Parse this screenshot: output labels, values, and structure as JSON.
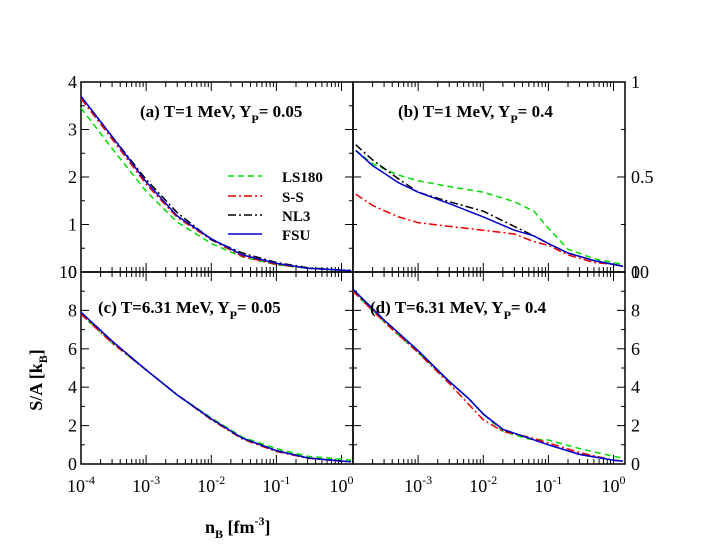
{
  "chart_data": {
    "type": "line",
    "xlabel": "n",
    "xlabel_sub": "B",
    "xlabel_units": " [fm",
    "xlabel_exp": "-3",
    "xlabel_close": "]",
    "ylabel": "S/A [k",
    "ylabel_sub": "B",
    "ylabel_close": "]",
    "x_scale": "log",
    "legend": {
      "placement": "panel-a-right",
      "entries": [
        {
          "name": "LS180",
          "color": "#00dd00",
          "dash": "dashed"
        },
        {
          "name": "S-S",
          "color": "#ee0000",
          "dash": "dash-dot"
        },
        {
          "name": "NL3",
          "color": "#000000",
          "dash": "dash-dot"
        },
        {
          "name": "FSU",
          "color": "#0000cc",
          "dash": "solid"
        }
      ]
    },
    "panels": [
      {
        "id": "a",
        "title_main": "(a) T=1 MeV, Y",
        "title_sub": "P",
        "title_tail": "= 0.05",
        "xlim": [
          0.0001,
          1.5
        ],
        "ylim": [
          0,
          4
        ],
        "yticks": [
          0,
          1,
          2,
          3,
          4
        ],
        "yticklabels": [
          "0",
          "1",
          "2",
          "3",
          "4"
        ],
        "xticklabels": [],
        "series": {
          "LS180": {
            "x": [
              0.0001,
              0.0003,
              0.001,
              0.003,
              0.01,
              0.03,
              0.1,
              0.3,
              1.0,
              1.4
            ],
            "y": [
              3.45,
              2.6,
              1.7,
              1.05,
              0.6,
              0.32,
              0.15,
              0.08,
              0.04,
              0.03
            ]
          },
          "S-S": {
            "x": [
              0.0001,
              0.0003,
              0.001,
              0.003,
              0.01,
              0.03,
              0.1,
              0.3,
              1.0,
              1.4
            ],
            "y": [
              3.65,
              2.8,
              1.85,
              1.15,
              0.68,
              0.33,
              0.16,
              0.08,
              0.04,
              0.03
            ]
          },
          "NL3": {
            "x": [
              0.0001,
              0.0003,
              0.001,
              0.003,
              0.01,
              0.03,
              0.1,
              0.3,
              1.0,
              1.4
            ],
            "y": [
              3.7,
              2.85,
              1.95,
              1.25,
              0.68,
              0.4,
              0.2,
              0.09,
              0.04,
              0.03
            ]
          },
          "FSU": {
            "x": [
              0.0001,
              0.0003,
              0.001,
              0.003,
              0.01,
              0.03,
              0.1,
              0.3,
              1.0,
              1.4
            ],
            "y": [
              3.7,
              2.85,
              1.9,
              1.18,
              0.7,
              0.36,
              0.18,
              0.08,
              0.04,
              0.03
            ]
          }
        }
      },
      {
        "id": "b",
        "title_main": "(b) T=1 MeV, Y",
        "title_sub": "P",
        "title_tail": "= 0.4",
        "xlim": [
          0.0001,
          1.5
        ],
        "ylim": [
          0,
          1
        ],
        "yticks": [
          0,
          0.5,
          1
        ],
        "yticklabels": [
          "0",
          "0.5",
          "1"
        ],
        "xticklabels": [],
        "series": {
          "LS180": {
            "x": [
              0.00011,
              0.0002,
              0.0005,
              0.001,
              0.003,
              0.01,
              0.03,
              0.06,
              0.1,
              0.2,
              0.5,
              1.0,
              1.4
            ],
            "y": [
              0.64,
              0.57,
              0.51,
              0.48,
              0.45,
              0.42,
              0.37,
              0.32,
              0.23,
              0.12,
              0.07,
              0.05,
              0.04
            ]
          },
          "S-S": {
            "x": [
              0.00011,
              0.0002,
              0.0005,
              0.001,
              0.003,
              0.01,
              0.03,
              0.06,
              0.1,
              0.2,
              0.5,
              1.0,
              1.4
            ],
            "y": [
              0.41,
              0.35,
              0.29,
              0.26,
              0.24,
              0.22,
              0.2,
              0.16,
              0.14,
              0.09,
              0.05,
              0.04,
              0.03
            ]
          },
          "NL3": {
            "x": [
              0.00011,
              0.0002,
              0.0005,
              0.001,
              0.003,
              0.01,
              0.03,
              0.06,
              0.1,
              0.2,
              0.5,
              1.0,
              1.4
            ],
            "y": [
              0.67,
              0.59,
              0.49,
              0.42,
              0.37,
              0.32,
              0.24,
              0.19,
              0.15,
              0.1,
              0.06,
              0.04,
              0.03
            ]
          },
          "FSU": {
            "x": [
              0.00011,
              0.0002,
              0.0005,
              0.001,
              0.003,
              0.01,
              0.03,
              0.06,
              0.1,
              0.2,
              0.5,
              1.0,
              1.4
            ],
            "y": [
              0.64,
              0.56,
              0.47,
              0.42,
              0.36,
              0.29,
              0.22,
              0.19,
              0.15,
              0.1,
              0.06,
              0.04,
              0.03
            ]
          }
        }
      },
      {
        "id": "c",
        "title_main": "(c) T=6.31 MeV, Y",
        "title_sub": "P",
        "title_tail": "= 0.05",
        "xlim": [
          0.0001,
          1.5
        ],
        "ylim": [
          0,
          10
        ],
        "yticks": [
          0,
          2,
          4,
          6,
          8,
          10
        ],
        "yticklabels": [
          "0",
          "2",
          "4",
          "6",
          "8",
          "10"
        ],
        "xticklabels": [
          "10-4",
          "10-3",
          "10-2",
          "10-1",
          "100"
        ],
        "series": {
          "LS180": {
            "x": [
              0.0001,
              0.0003,
              0.001,
              0.003,
              0.01,
              0.03,
              0.1,
              0.3,
              1.0,
              1.4
            ],
            "y": [
              7.8,
              6.3,
              4.9,
              3.6,
              2.4,
              1.4,
              0.8,
              0.4,
              0.25,
              0.2
            ]
          },
          "S-S": {
            "x": [
              0.0001,
              0.0003,
              0.001,
              0.003,
              0.01,
              0.03,
              0.1,
              0.3,
              1.0,
              1.4
            ],
            "y": [
              7.8,
              6.3,
              4.9,
              3.6,
              2.3,
              1.3,
              0.65,
              0.3,
              0.15,
              0.12
            ]
          },
          "NL3": {
            "x": [
              0.0001,
              0.0003,
              0.001,
              0.003,
              0.01,
              0.03,
              0.1,
              0.3,
              1.0,
              1.4
            ],
            "y": [
              7.9,
              6.4,
              4.9,
              3.6,
              2.35,
              1.35,
              0.7,
              0.32,
              0.15,
              0.12
            ]
          },
          "FSU": {
            "x": [
              0.0001,
              0.0003,
              0.001,
              0.003,
              0.01,
              0.03,
              0.1,
              0.3,
              1.0,
              1.4
            ],
            "y": [
              7.9,
              6.4,
              4.9,
              3.6,
              2.35,
              1.35,
              0.7,
              0.32,
              0.15,
              0.12
            ]
          }
        }
      },
      {
        "id": "d",
        "title_main": "(d) T=6.31 MeV, Y",
        "title_sub": "P",
        "title_tail": "= 0.4",
        "xlim": [
          0.0001,
          1.5
        ],
        "ylim": [
          0,
          10
        ],
        "yticks": [
          0,
          2,
          4,
          6,
          8,
          10
        ],
        "yticklabels": [
          "0",
          "2",
          "4",
          "6",
          "8",
          "10"
        ],
        "xticklabels": [
          "10-3",
          "10-2",
          "10-1",
          "100"
        ],
        "series": {
          "LS180": {
            "x": [
              0.0001,
              0.0003,
              0.001,
              0.003,
              0.006,
              0.01,
              0.02,
              0.05,
              0.1,
              0.3,
              1.0,
              1.4
            ],
            "y": [
              9.0,
              7.4,
              5.8,
              4.3,
              3.4,
              2.6,
              1.7,
              1.3,
              1.25,
              0.8,
              0.4,
              0.3
            ]
          },
          "S-S": {
            "x": [
              0.0001,
              0.0003,
              0.001,
              0.003,
              0.006,
              0.01,
              0.02,
              0.05,
              0.1,
              0.3,
              1.0,
              1.4
            ],
            "y": [
              9.0,
              7.4,
              5.8,
              4.2,
              3.1,
              2.3,
              1.7,
              1.4,
              1.1,
              0.6,
              0.2,
              0.15
            ]
          },
          "NL3": {
            "x": [
              0.0001,
              0.0003,
              0.001,
              0.003,
              0.006,
              0.01,
              0.02,
              0.05,
              0.1,
              0.3,
              1.0,
              1.4
            ],
            "y": [
              9.1,
              7.5,
              5.9,
              4.3,
              3.4,
              2.6,
              1.8,
              1.35,
              1.0,
              0.5,
              0.2,
              0.15
            ]
          },
          "FSU": {
            "x": [
              0.0001,
              0.0003,
              0.001,
              0.003,
              0.006,
              0.01,
              0.02,
              0.05,
              0.1,
              0.3,
              1.0,
              1.4
            ],
            "y": [
              9.1,
              7.5,
              5.9,
              4.3,
              3.4,
              2.6,
              1.8,
              1.35,
              1.0,
              0.5,
              0.2,
              0.15
            ]
          }
        }
      }
    ]
  }
}
